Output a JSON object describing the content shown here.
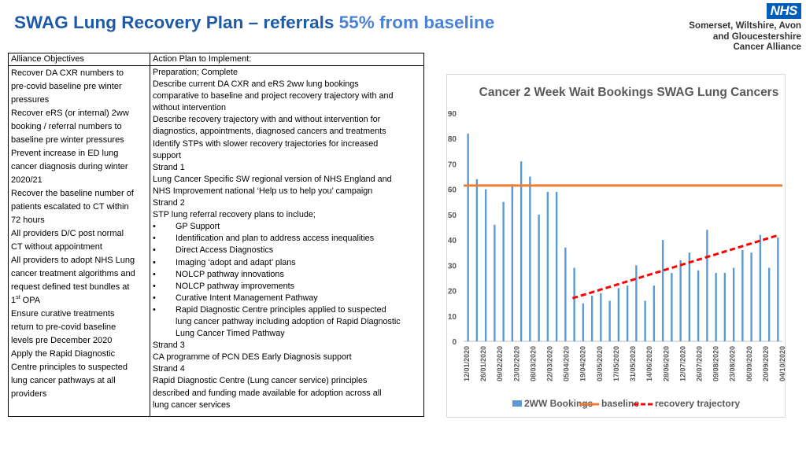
{
  "header": {
    "title_main": "SWAG Lung Recovery Plan – referrals",
    "title_highlight": "55% from baseline"
  },
  "logo": {
    "badge": "NHS",
    "lines": [
      "Somerset, Wiltshire, Avon",
      "and Gloucestershire",
      "Cancer Alliance"
    ]
  },
  "table": {
    "col1_header": "Alliance Objectives",
    "col2_header": "Action Plan to Implement:",
    "objectives_lines": [
      "Recover DA CXR numbers to",
      "pre-covid baseline pre winter",
      "pressures",
      "Recover eRS (or internal) 2ww",
      "booking / referral numbers to",
      "baseline pre winter pressures",
      "Prevent increase in ED lung",
      "cancer diagnosis during winter",
      "2020/21",
      "Recover the baseline number of",
      "patients escalated to CT within",
      "72 hours",
      "All providers D/C post normal",
      "CT without appointment",
      "All providers to adopt NHS Lung",
      "cancer treatment algorithms and",
      "request defined test bundles at"
    ],
    "opa_num": "1",
    "opa_sup": "st",
    "opa_text": " OPA",
    "objectives_lines_after": [
      "Ensure curative treatments",
      "return to  pre-covid baseline",
      "levels pre December 2020",
      "Apply the Rapid Diagnostic",
      "Centre principles to suspected",
      "lung cancer pathways at all",
      "providers"
    ],
    "action_lines_a": [
      "Preparation; Complete",
      "Describe current DA CXR and eRS 2ww lung bookings",
      "comparative to baseline and project recovery trajectory with and",
      "without intervention",
      "Describe recovery trajectory with and without intervention for",
      "diagnostics, appointments, diagnosed cancers and treatments",
      "Identify STPs with slower recovery trajectories for increased",
      "support",
      "Strand 1",
      "Lung Cancer Specific SW regional version of NHS England and",
      "NHS Improvement national ‘Help us to help you’ campaign",
      "Strand 2",
      "STP lung referral recovery plans to include;"
    ],
    "bullet_char": "•",
    "bullets": [
      "GP Support",
      "Identification and plan to address access inequalities",
      "Direct Access Diagnostics",
      "Imaging ‘adopt and adapt’ plans",
      "NOLCP pathway innovations",
      "NOLCP pathway improvements",
      "Curative Intent Management Pathway",
      "Rapid Diagnostic Centre principles applied to suspected"
    ],
    "bullet_cont": [
      "lung cancer pathway including adoption of Rapid Diagnostic",
      "Lung Cancer Timed Pathway"
    ],
    "action_lines_b": [
      "Strand 3",
      "CA programme of PCN DES Early Diagnosis support",
      "Strand 4",
      "Rapid Diagnostic Centre (Lung cancer service) principles",
      "described and funding made available for adoption across all",
      "lung cancer services"
    ]
  },
  "chart_data": {
    "type": "bar",
    "title": "Cancer 2 Week Wait Bookings SWAG Lung Cancers",
    "ylim": [
      0,
      90
    ],
    "yticks": [
      0,
      10,
      20,
      30,
      40,
      50,
      60,
      70,
      80,
      90
    ],
    "grid": false,
    "legend_position": "bottom",
    "x_tick_labels": [
      "12/01/2020",
      "26/01/2020",
      "09/02/2020",
      "23/02/2020",
      "08/03/2020",
      "22/03/2020",
      "05/04/2020",
      "19/04/2020",
      "03/05/2020",
      "17/05/2020",
      "31/05/2020",
      "14/06/2020",
      "28/06/2020",
      "12/07/2020",
      "26/07/2020",
      "09/08/2020",
      "23/08/2020",
      "06/09/2020",
      "20/09/2020",
      "04/10/2020"
    ],
    "series": [
      {
        "name": "2WW Bookings",
        "kind": "bar",
        "color": "#5b9bd5",
        "values": [
          82,
          64,
          60,
          46,
          55,
          62,
          71,
          65,
          50,
          59,
          59,
          37,
          29,
          15,
          18,
          19,
          16,
          21,
          22,
          30,
          16,
          22,
          40,
          27,
          32,
          35,
          28,
          44,
          27,
          27,
          29,
          36,
          35,
          42,
          29,
          41
        ]
      },
      {
        "name": "baseline",
        "kind": "line",
        "color": "#ed7d31",
        "value": 61.5
      },
      {
        "name": "recovery trajectory",
        "kind": "dashed-line",
        "color": "#ff0000",
        "start_value": 17,
        "end_value": 42
      }
    ]
  }
}
